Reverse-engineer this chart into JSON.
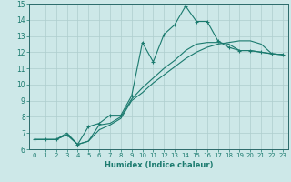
{
  "xlabel": "Humidex (Indice chaleur)",
  "background_color": "#cde8e8",
  "grid_color": "#aecece",
  "line_color": "#1a7a6e",
  "xlim": [
    -0.5,
    23.5
  ],
  "ylim": [
    6,
    15
  ],
  "x_ticks": [
    0,
    1,
    2,
    3,
    4,
    5,
    6,
    7,
    8,
    9,
    10,
    11,
    12,
    13,
    14,
    15,
    16,
    17,
    18,
    19,
    20,
    21,
    22,
    23
  ],
  "y_ticks": [
    6,
    7,
    8,
    9,
    10,
    11,
    12,
    13,
    14,
    15
  ],
  "line1_x": [
    0,
    1,
    2,
    3,
    4,
    5,
    6,
    7,
    8,
    9,
    10,
    11,
    12,
    13,
    14,
    15,
    16,
    17,
    18,
    19,
    20,
    21,
    22,
    23
  ],
  "line1_y": [
    6.6,
    6.6,
    6.6,
    6.9,
    6.3,
    7.4,
    7.6,
    8.1,
    8.1,
    9.3,
    12.6,
    11.4,
    13.1,
    13.7,
    14.85,
    13.9,
    13.9,
    12.7,
    12.3,
    12.1,
    12.1,
    12.0,
    11.9,
    11.85
  ],
  "line2_x": [
    0,
    1,
    2,
    3,
    4,
    5,
    6,
    7,
    8,
    9,
    10,
    11,
    12,
    13,
    14,
    15,
    16,
    17,
    18,
    19,
    20,
    21,
    22,
    23
  ],
  "line2_y": [
    6.6,
    6.6,
    6.6,
    6.9,
    6.3,
    6.5,
    7.2,
    7.5,
    7.9,
    9.0,
    9.5,
    10.1,
    10.6,
    11.1,
    11.6,
    12.0,
    12.3,
    12.5,
    12.6,
    12.7,
    12.7,
    12.5,
    11.9,
    11.85
  ],
  "line3_x": [
    0,
    1,
    2,
    3,
    4,
    5,
    6,
    7,
    8,
    9,
    10,
    11,
    12,
    13,
    14,
    15,
    16,
    17,
    18,
    19,
    20,
    21,
    22,
    23
  ],
  "line3_y": [
    6.6,
    6.6,
    6.6,
    7.0,
    6.3,
    6.5,
    7.5,
    7.6,
    8.0,
    9.1,
    9.8,
    10.4,
    11.0,
    11.5,
    12.1,
    12.5,
    12.6,
    12.6,
    12.5,
    12.1,
    12.1,
    12.0,
    11.9,
    11.85
  ]
}
